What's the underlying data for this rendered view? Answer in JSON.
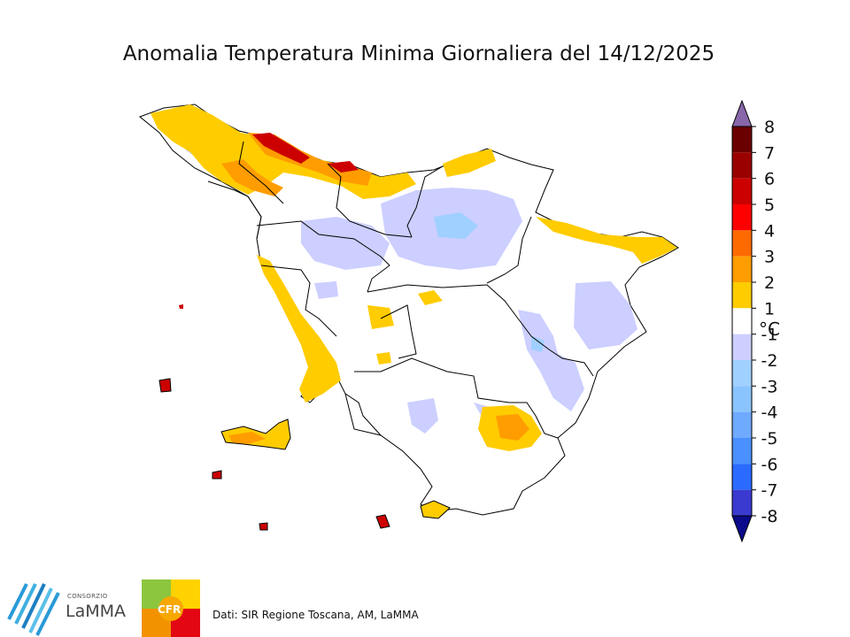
{
  "title": "Anomalia Temperatura Minima Giornaliera del 14/12/2025",
  "legend": {
    "unit": "°C",
    "labels": [
      "8",
      "7",
      "6",
      "5",
      "4",
      "3",
      "2",
      "1",
      "-1",
      "-2",
      "-3",
      "-4",
      "-5",
      "-6",
      "-7",
      "-8"
    ],
    "colors": [
      "#6a0000",
      "#9a0000",
      "#cc0000",
      "#ff0000",
      "#ff6a00",
      "#ff9d00",
      "#ffcc00",
      "#ffffff",
      "#cccfff",
      "#a0d0ff",
      "#8ac4ff",
      "#6eaaff",
      "#4a90ff",
      "#2a6aff",
      "#3a3ad0"
    ],
    "over_color": "#8866aa",
    "under_color": "#0a0a8a"
  },
  "source": "Dati: SIR Regione Toscana, AM, LaMMA",
  "logos": {
    "lamma_consorzio": "CONSORZIO",
    "lamma_name": "LaMMA",
    "cfr": "CFR"
  }
}
